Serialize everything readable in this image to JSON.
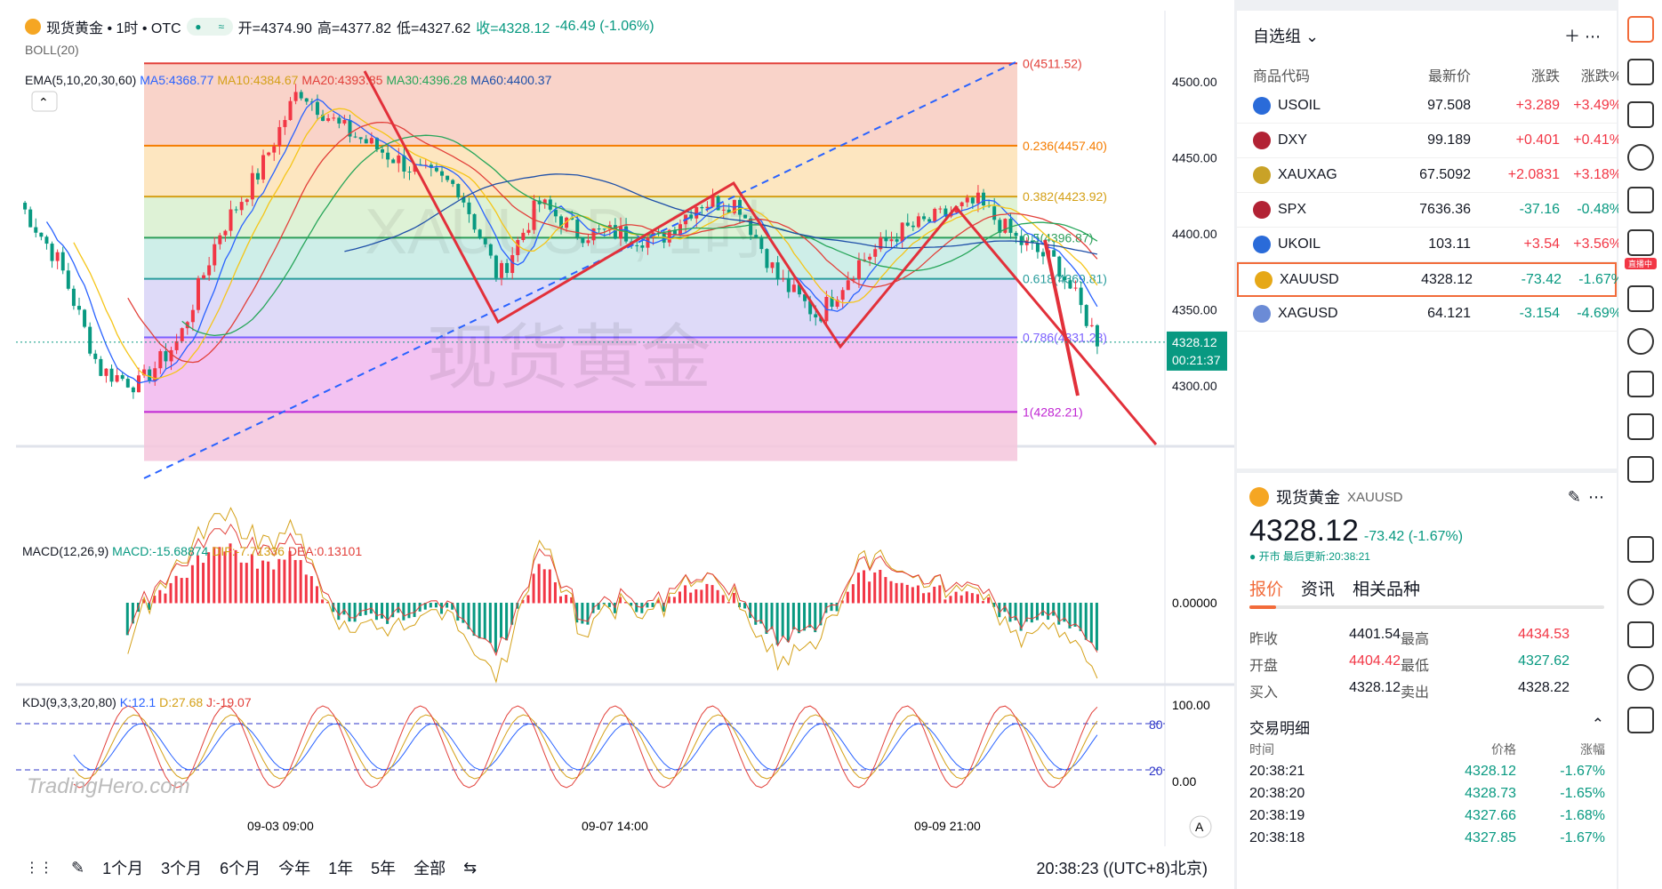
{
  "symbol_header": {
    "name": "现货黄金 • 1时 • OTC",
    "open_label": "开=4374.90",
    "high_label": "高=4377.82",
    "low_label": "低=4327.62",
    "close_label": "收=4328.12",
    "change": "-46.49 (-1.06%)"
  },
  "indicators": {
    "boll": "BOLL(20)",
    "ema_label": "EMA(5,10,20,30,60)",
    "ema": [
      "MA5:4368.77",
      "MA10:4384.67",
      "MA20:4393.85",
      "MA30:4396.28",
      "MA60:4400.37"
    ],
    "ema_colors": [
      "#2962ff",
      "#f5c518",
      "#e2403a",
      "#27a65a",
      "#1e4fa8"
    ]
  },
  "watermark": {
    "symbol": "XAUUSD, 1时",
    "name": "现货黄金"
  },
  "price_axis": [
    "4500.00",
    "4450.00",
    "4400.00",
    "4350.00",
    "4300.00"
  ],
  "current_price": {
    "price": "4328.12",
    "countdown": "00:21:37"
  },
  "fib_levels": [
    {
      "label": "0(4511.52)",
      "color": "#e2403a"
    },
    {
      "label": "0.236(4457.40)",
      "color": "#f57c00"
    },
    {
      "label": "0.382(4423.92)",
      "color": "#d4a017"
    },
    {
      "label": "0.5(4396.87)",
      "color": "#2e9e5b"
    },
    {
      "label": "0.618(4369.81)",
      "color": "#2a9d9d"
    },
    {
      "label": "0.786(4331.28)",
      "color": "#7b61ff"
    },
    {
      "label": "1(4282.21)",
      "color": "#c026d3"
    }
  ],
  "macd": {
    "label": "MACD(12,26,9)",
    "macd": "MACD:-15.68874",
    "dif": "DIF:-7.71336",
    "dea": "DEA:0.13101",
    "axis": "0.00000"
  },
  "kdj": {
    "label": "KDJ(9,3,3,20,80)",
    "k": "K:12.1",
    "d": "D:27.68",
    "j": "J:-19.07",
    "axis": [
      "100.00",
      "0.00"
    ],
    "level80": "80",
    "level20": "20"
  },
  "brand": "TradingHero.com",
  "time_axis": [
    "09-03 09:00",
    "09-07 14:00",
    "09-09 21:00"
  ],
  "auto_label": "A",
  "range_buttons": [
    "1个月",
    "3个月",
    "6个月",
    "今年",
    "1年",
    "5年",
    "全部"
  ],
  "clock": "20:38:23 ((UTC+8)北京)",
  "watchlist": {
    "title": "自选组",
    "columns": [
      "商品代码",
      "最新价",
      "涨跌",
      "涨跌%"
    ],
    "rows": [
      {
        "sym": "USOIL",
        "price": "97.508",
        "chg": "+3.289",
        "pct": "+3.49%",
        "dir": "up",
        "icon": "#2a6bd9"
      },
      {
        "sym": "DXY",
        "price": "99.189",
        "chg": "+0.401",
        "pct": "+0.41%",
        "dir": "up",
        "icon": "#b22234"
      },
      {
        "sym": "XAUXAG",
        "price": "67.5092",
        "chg": "+2.0831",
        "pct": "+3.18%",
        "dir": "up",
        "icon": "#c9a227"
      },
      {
        "sym": "SPX",
        "price": "7636.36",
        "chg": "-37.16",
        "pct": "-0.48%",
        "dir": "dn",
        "icon": "#b22234"
      },
      {
        "sym": "UKOIL",
        "price": "103.11",
        "chg": "+3.54",
        "pct": "+3.56%",
        "dir": "up",
        "icon": "#2a6bd9"
      },
      {
        "sym": "XAUUSD",
        "price": "4328.12",
        "chg": "-73.42",
        "pct": "-1.67%",
        "dir": "dn",
        "icon": "#e6a817"
      },
      {
        "sym": "XAGUSD",
        "price": "64.121",
        "chg": "-3.154",
        "pct": "-4.69%",
        "dir": "dn",
        "icon": "#6b8bd6"
      }
    ]
  },
  "detail": {
    "name": "现货黄金",
    "code": "XAUUSD",
    "price": "4328.12",
    "change": "-73.42 (-1.67%)",
    "status": "● 开市 最后更新:20:38:21",
    "tabs": [
      "报价",
      "资讯",
      "相关品种"
    ],
    "stats": [
      [
        "昨收",
        "4401.54",
        "最高",
        "4434.53"
      ],
      [
        "开盘",
        "4404.42",
        "最低",
        "4327.62"
      ],
      [
        "买入",
        "4328.12",
        "卖出",
        "4328.22"
      ]
    ],
    "trades_title": "交易明细",
    "trade_cols": [
      "时间",
      "价格",
      "涨幅"
    ],
    "trades": [
      [
        "20:38:21",
        "4328.12",
        "-1.67%"
      ],
      [
        "20:38:20",
        "4328.73",
        "-1.65%"
      ],
      [
        "20:38:19",
        "4327.66",
        "-1.68%"
      ],
      [
        "20:38:18",
        "4327.85",
        "-1.67%"
      ]
    ]
  },
  "live_badge": "直播中"
}
